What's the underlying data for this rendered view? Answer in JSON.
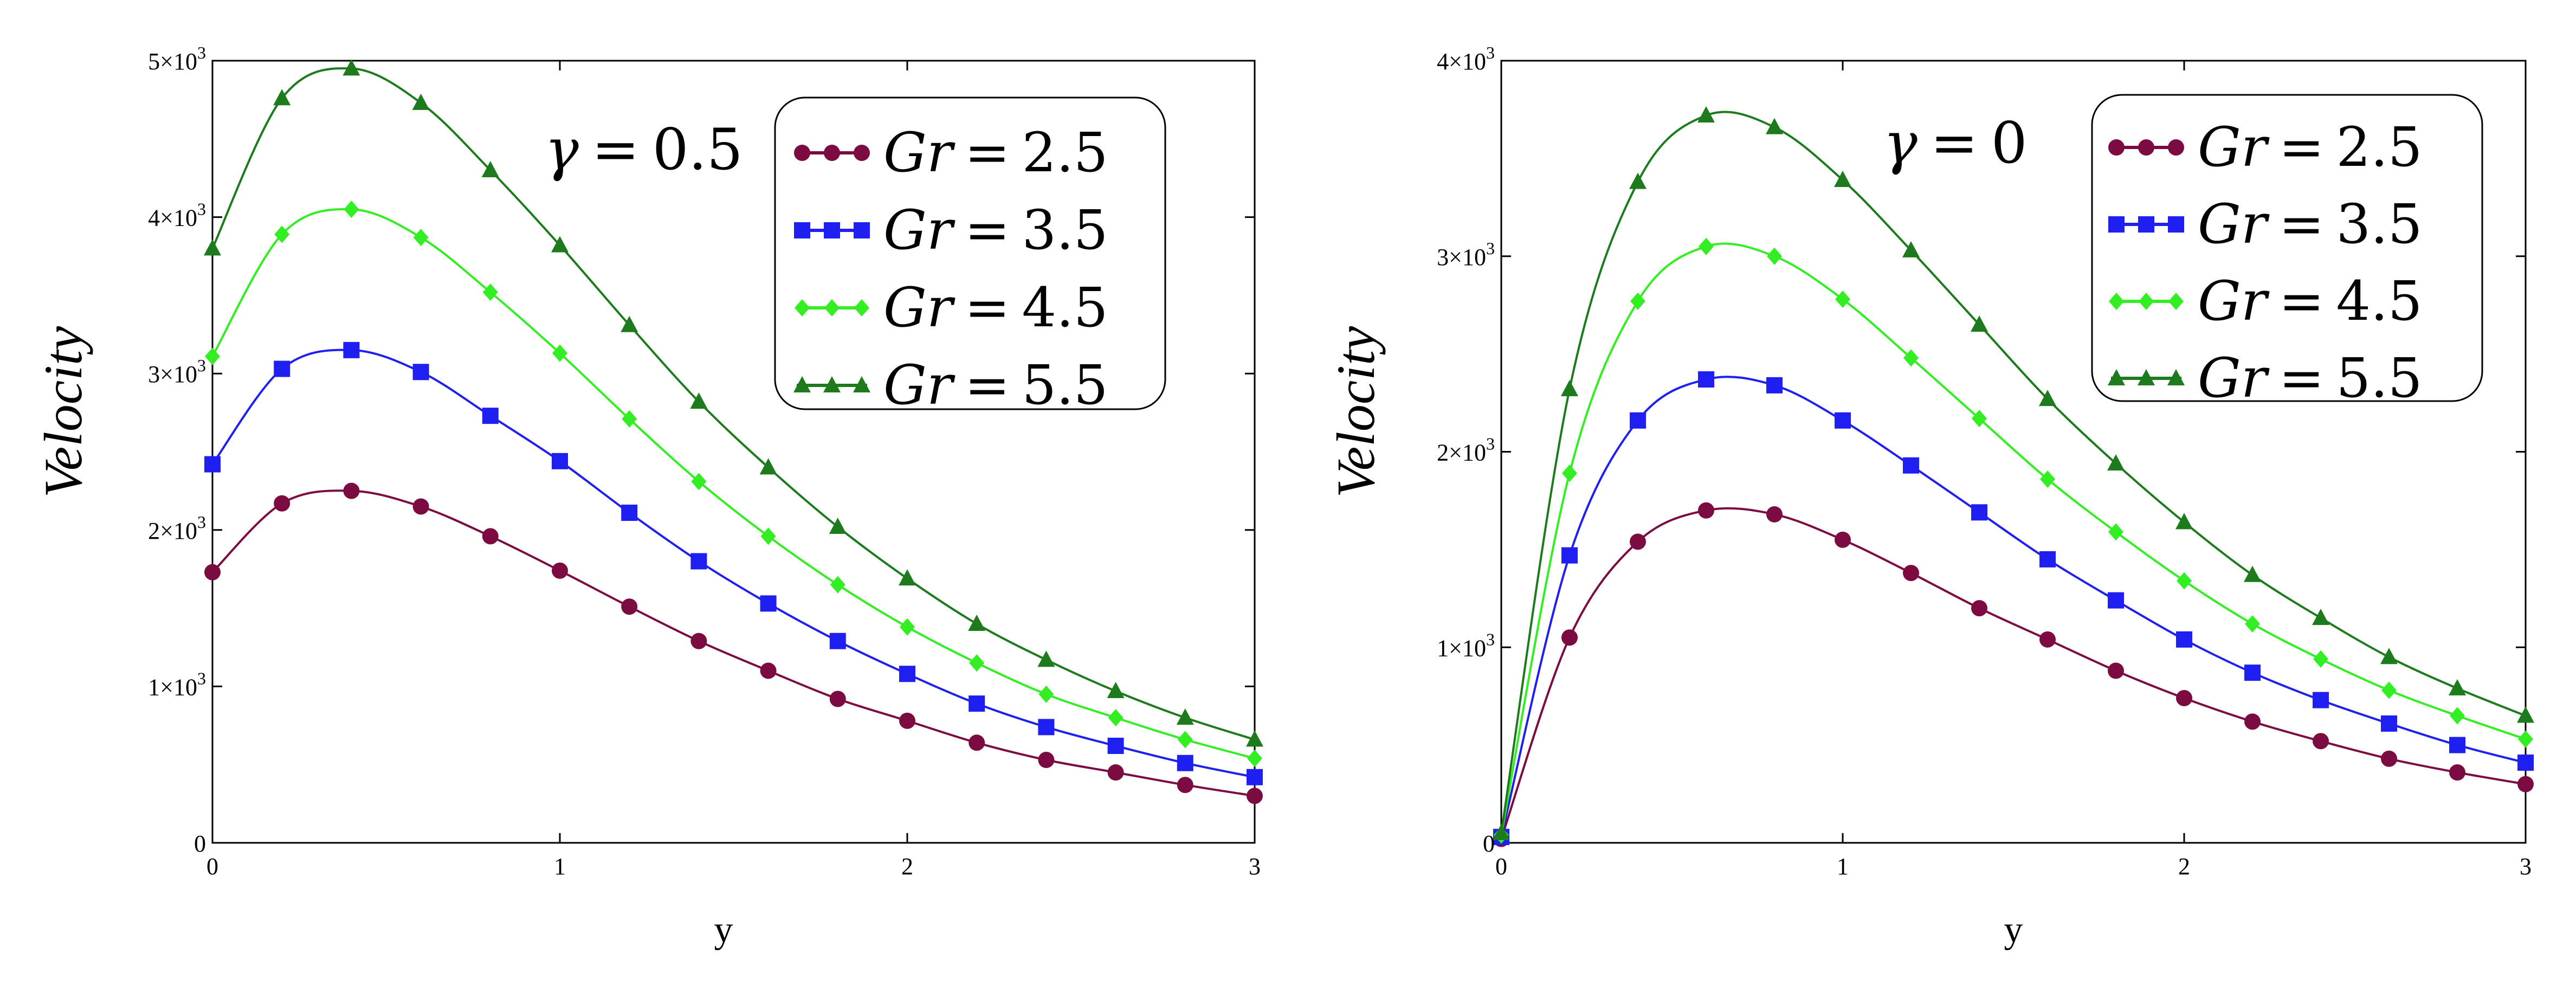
{
  "colors": {
    "gr25": "#7b0b41",
    "gr35": "#1f1ff2",
    "gr45": "#33ee22",
    "gr55": "#1d7a1d"
  },
  "chart_data": [
    {
      "type": "line",
      "annotation": {
        "symbol": "γ",
        "operator": "=",
        "value": "0.5"
      },
      "xlabel": "y",
      "ylabel": "Velocity",
      "xlim": [
        0,
        3
      ],
      "ylim": [
        0,
        5000
      ],
      "xticks": [
        "0",
        "1",
        "2",
        "3"
      ],
      "yticks": [
        {
          "mantissa": "0",
          "exp": ""
        },
        {
          "mantissa": "1×10",
          "exp": "3"
        },
        {
          "mantissa": "2×10",
          "exp": "3"
        },
        {
          "mantissa": "3×10",
          "exp": "3"
        },
        {
          "mantissa": "4×10",
          "exp": "3"
        },
        {
          "mantissa": "5×10",
          "exp": "3"
        }
      ],
      "legend": {
        "position": "top-right"
      },
      "x": [
        0,
        0.2,
        0.4,
        0.6,
        0.8,
        1.0,
        1.2,
        1.4,
        1.6,
        1.8,
        2.0,
        2.2,
        2.4,
        2.6,
        2.8,
        3.0
      ],
      "series": [
        {
          "name": "Gr = 2.5",
          "var": "Gr",
          "op": "=",
          "val": "2.5",
          "marker": "circle",
          "color": "#7b0b41",
          "values": [
            1730,
            2170,
            2250,
            2150,
            1960,
            1740,
            1510,
            1290,
            1100,
            920,
            780,
            640,
            530,
            450,
            370,
            300
          ]
        },
        {
          "name": "Gr = 3.5",
          "var": "Gr",
          "op": "=",
          "val": "3.5",
          "marker": "square",
          "color": "#1f1ff2",
          "values": [
            2420,
            3030,
            3150,
            3010,
            2730,
            2440,
            2110,
            1800,
            1530,
            1290,
            1080,
            890,
            740,
            620,
            510,
            420
          ]
        },
        {
          "name": "Gr = 4.5",
          "var": "Gr",
          "op": "=",
          "val": "4.5",
          "marker": "diamond",
          "color": "#33ee22",
          "values": [
            3110,
            3890,
            4050,
            3870,
            3520,
            3130,
            2710,
            2310,
            1960,
            1650,
            1380,
            1150,
            950,
            800,
            660,
            540
          ]
        },
        {
          "name": "Gr = 5.5",
          "var": "Gr",
          "op": "=",
          "val": "5.5",
          "marker": "triangle",
          "color": "#1d7a1d",
          "values": [
            3800,
            4760,
            4950,
            4730,
            4300,
            3820,
            3310,
            2820,
            2400,
            2020,
            1690,
            1400,
            1170,
            970,
            800,
            660
          ]
        }
      ]
    },
    {
      "type": "line",
      "annotation": {
        "symbol": "γ",
        "operator": "=",
        "value": "0"
      },
      "xlabel": "y",
      "ylabel": "Velocity",
      "xlim": [
        0,
        3
      ],
      "ylim": [
        0,
        4000
      ],
      "xticks": [
        "0",
        "1",
        "2",
        "3"
      ],
      "yticks": [
        {
          "mantissa": "0",
          "exp": ""
        },
        {
          "mantissa": "1×10",
          "exp": "3"
        },
        {
          "mantissa": "2×10",
          "exp": "3"
        },
        {
          "mantissa": "3×10",
          "exp": "3"
        },
        {
          "mantissa": "4×10",
          "exp": "3"
        }
      ],
      "legend": {
        "position": "top-right"
      },
      "x": [
        0,
        0.2,
        0.4,
        0.6,
        0.8,
        1.0,
        1.2,
        1.4,
        1.6,
        1.8,
        2.0,
        2.2,
        2.4,
        2.6,
        2.8,
        3.0
      ],
      "series": [
        {
          "name": "Gr = 2.5",
          "var": "Gr",
          "op": "=",
          "val": "2.5",
          "marker": "circle",
          "color": "#7b0b41",
          "values": [
            20,
            1050,
            1540,
            1700,
            1680,
            1550,
            1380,
            1200,
            1040,
            880,
            740,
            620,
            520,
            430,
            360,
            300
          ]
        },
        {
          "name": "Gr = 3.5",
          "var": "Gr",
          "op": "=",
          "val": "3.5",
          "marker": "square",
          "color": "#1f1ff2",
          "values": [
            30,
            1470,
            2160,
            2370,
            2340,
            2160,
            1930,
            1690,
            1450,
            1240,
            1040,
            870,
            730,
            610,
            500,
            410
          ]
        },
        {
          "name": "Gr = 4.5",
          "var": "Gr",
          "op": "=",
          "val": "4.5",
          "marker": "diamond",
          "color": "#33ee22",
          "values": [
            40,
            1890,
            2770,
            3050,
            3000,
            2780,
            2480,
            2170,
            1860,
            1590,
            1340,
            1120,
            940,
            780,
            650,
            530
          ]
        },
        {
          "name": "Gr = 5.5",
          "var": "Gr",
          "op": "=",
          "val": "5.5",
          "marker": "triangle",
          "color": "#1d7a1d",
          "values": [
            50,
            2320,
            3380,
            3720,
            3660,
            3390,
            3030,
            2650,
            2270,
            1940,
            1640,
            1370,
            1150,
            950,
            790,
            650
          ]
        }
      ]
    }
  ]
}
